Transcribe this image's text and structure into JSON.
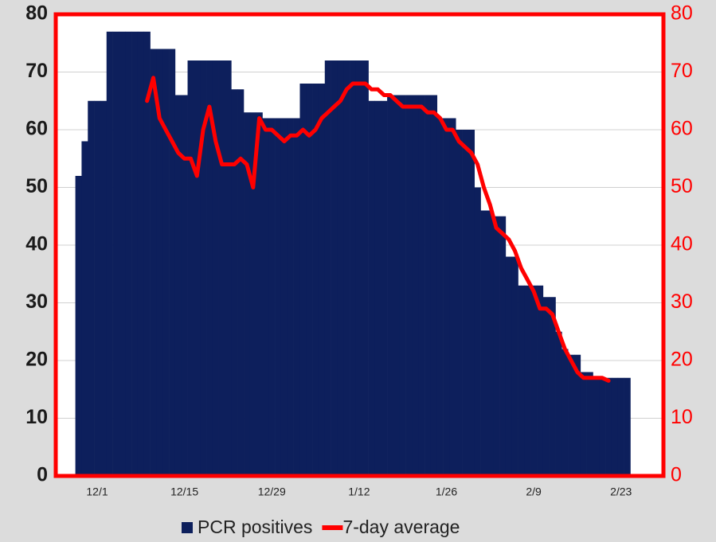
{
  "chart_data": {
    "type": "bar_line",
    "categories": [
      null,
      null,
      null,
      "12/1",
      null,
      null,
      null,
      null,
      null,
      null,
      null,
      null,
      null,
      null,
      null,
      null,
      null,
      "12/15",
      null,
      null,
      null,
      null,
      null,
      null,
      null,
      null,
      null,
      null,
      null,
      null,
      null,
      "12/29",
      null,
      null,
      null,
      null,
      null,
      null,
      null,
      null,
      null,
      null,
      null,
      null,
      null,
      "1/12",
      null,
      null,
      null,
      null,
      null,
      null,
      null,
      null,
      null,
      null,
      null,
      null,
      null,
      "1/26",
      null,
      null,
      null,
      null,
      null,
      null,
      null,
      null,
      null,
      null,
      null,
      null,
      null,
      "2/9",
      null,
      null,
      null,
      null,
      null,
      null,
      null,
      null,
      null,
      null,
      null,
      null,
      null,
      "2/23",
      null
    ],
    "series": [
      {
        "name": "PCR positives",
        "type": "bar",
        "color": "#0d1f5c",
        "axis": "y",
        "values": [
          52,
          58,
          65,
          65,
          65,
          77,
          77,
          77,
          77,
          77,
          77,
          77,
          74,
          74,
          74,
          74,
          66,
          66,
          72,
          72,
          72,
          72,
          72,
          72,
          72,
          67,
          67,
          63,
          63,
          63,
          62,
          62,
          62,
          62,
          62,
          62,
          68,
          68,
          68,
          68,
          72,
          72,
          72,
          72,
          72,
          72,
          72,
          65,
          65,
          65,
          66,
          66,
          66,
          66,
          66,
          66,
          66,
          66,
          62,
          62,
          62,
          60,
          60,
          60,
          50,
          46,
          46,
          45,
          45,
          38,
          38,
          33,
          33,
          33,
          33,
          31,
          31,
          25,
          22,
          21,
          21,
          18,
          18,
          17,
          17,
          17,
          17,
          17,
          17
        ]
      },
      {
        "name": "7-day average",
        "type": "line",
        "color": "#ff0000",
        "axis": "y2",
        "values": [
          null,
          null,
          null,
          null,
          null,
          null,
          null,
          null,
          null,
          null,
          null,
          65,
          69,
          62,
          60,
          58,
          56,
          55,
          55,
          52,
          60,
          64,
          58,
          54,
          54,
          54,
          55,
          54,
          50,
          62,
          60,
          60,
          59,
          58,
          59,
          59,
          60,
          59,
          60,
          62,
          63,
          64,
          65,
          67,
          68,
          68,
          68,
          67,
          67,
          66,
          66,
          65,
          64,
          64,
          64,
          64,
          63,
          63,
          62,
          60,
          60,
          58,
          57,
          56,
          54,
          50,
          47,
          43,
          42,
          41,
          39,
          36,
          34,
          32,
          29,
          29,
          28,
          25,
          22,
          20,
          18,
          17,
          17,
          17,
          17,
          16.5,
          null,
          null,
          null
        ]
      }
    ],
    "ylim": [
      0,
      80
    ],
    "yticks": [
      0,
      10,
      20,
      30,
      40,
      50,
      60,
      70,
      80
    ],
    "y2lim": [
      0,
      80
    ],
    "y2ticks": [
      0,
      10,
      20,
      30,
      40,
      50,
      60,
      70,
      80
    ],
    "grid": true,
    "legend": "bottom"
  }
}
